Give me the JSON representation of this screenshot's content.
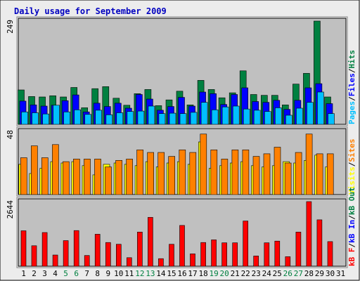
{
  "title": "Daily usage for September 2009",
  "colors": {
    "background": "#ececec",
    "plot_bg": "#c0c0c0",
    "hits": "#008040",
    "files": "#0000ff",
    "pages": "#00c0ff",
    "visits": "#ffff00",
    "sites": "#ff8000",
    "kbf": "#ff0000",
    "title": "#0000c0",
    "weekend": "#008040",
    "label_dark": "#000000"
  },
  "chart_data": [
    {
      "type": "bar",
      "panel": "hits",
      "ymax_label": "249",
      "ylim": [
        0,
        249
      ],
      "legend": [
        "Pages",
        "Files",
        "Hits"
      ],
      "series": [
        {
          "name": "Hits",
          "values": [
            83,
            67,
            66,
            69,
            66,
            89,
            40,
            86,
            91,
            63,
            46,
            74,
            84,
            45,
            59,
            80,
            47,
            106,
            84,
            64,
            76,
            129,
            72,
            70,
            70,
            47,
            97,
            123,
            249,
            66,
            0
          ]
        },
        {
          "name": "Files",
          "values": [
            56,
            47,
            44,
            46,
            57,
            71,
            30,
            51,
            43,
            51,
            39,
            72,
            61,
            34,
            43,
            65,
            44,
            78,
            74,
            48,
            72,
            88,
            55,
            53,
            58,
            36,
            58,
            88,
            98,
            50,
            0
          ]
        },
        {
          "name": "Pages",
          "values": [
            30,
            28,
            25,
            46,
            30,
            35,
            24,
            34,
            23,
            28,
            31,
            32,
            44,
            26,
            27,
            26,
            29,
            53,
            35,
            42,
            44,
            37,
            34,
            31,
            40,
            22,
            39,
            53,
            78,
            26,
            0
          ]
        }
      ]
    },
    {
      "type": "bar",
      "panel": "visits",
      "ymax_label": "48",
      "ylim": [
        0,
        48
      ],
      "legend": [
        "Visits",
        "Sites"
      ],
      "series": [
        {
          "name": "Visits",
          "values": [
            23,
            16,
            20,
            25,
            24,
            25,
            22,
            15,
            23,
            24,
            23,
            22,
            25,
            21,
            24,
            25,
            23,
            40,
            20,
            22,
            24,
            25,
            22,
            21,
            22,
            25,
            24,
            26,
            30,
            21,
            0
          ]
        },
        {
          "name": "Sites",
          "values": [
            28,
            37,
            28,
            38,
            25,
            27,
            27,
            27,
            21,
            26,
            27,
            34,
            32,
            32,
            29,
            34,
            32,
            46,
            34,
            27,
            34,
            34,
            29,
            31,
            36,
            24,
            32,
            46,
            31,
            31,
            0
          ]
        }
      ]
    },
    {
      "type": "bar",
      "panel": "kbytes",
      "ymax_label": "2644",
      "ylim": [
        0,
        2644
      ],
      "legend": [
        "kB F",
        "kB In",
        "kB Out"
      ],
      "series": [
        {
          "name": "kB F",
          "values": [
            1450,
            840,
            1380,
            460,
            1050,
            1460,
            440,
            1310,
            970,
            900,
            350,
            1400,
            2000,
            310,
            900,
            1670,
            510,
            970,
            1080,
            960,
            960,
            1850,
            420,
            960,
            1030,
            390,
            1400,
            2644,
            1900,
            1010,
            0
          ]
        }
      ]
    }
  ],
  "x_labels": [
    "1",
    "2",
    "3",
    "4",
    "5",
    "6",
    "7",
    "8",
    "9",
    "10",
    "11",
    "12",
    "13",
    "14",
    "15",
    "16",
    "17",
    "18",
    "19",
    "20",
    "21",
    "22",
    "23",
    "24",
    "25",
    "26",
    "27",
    "28",
    "29",
    "30",
    "31"
  ],
  "weekend_days": [
    5,
    6,
    12,
    13,
    19,
    20,
    26,
    27
  ]
}
